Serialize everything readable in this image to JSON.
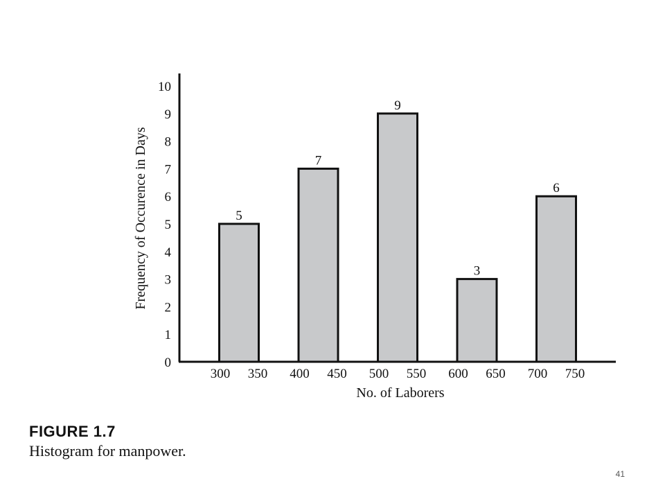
{
  "chart_data": {
    "type": "bar",
    "ylabel": "Frequency of Occurence in Days",
    "xlabel": "No. of Laborers",
    "ylim": [
      0,
      10
    ],
    "yticks": [
      "0",
      "1",
      "2",
      "3",
      "4",
      "5",
      "6",
      "7",
      "8",
      "9",
      "10"
    ],
    "categories": [
      {
        "low": "300",
        "high": "350"
      },
      {
        "low": "400",
        "high": "450"
      },
      {
        "low": "500",
        "high": "550"
      },
      {
        "low": "600",
        "high": "650"
      },
      {
        "low": "700",
        "high": "750"
      }
    ],
    "values": [
      5,
      7,
      9,
      3,
      6
    ],
    "value_labels": [
      "5",
      "7",
      "9",
      "3",
      "6"
    ],
    "grid": false,
    "bar_color": "#c8c9cb",
    "bar_outline": "#111111"
  },
  "figure": {
    "number": "FIGURE 1.7",
    "caption": "Histogram for manpower."
  },
  "page": {
    "number": "41"
  }
}
